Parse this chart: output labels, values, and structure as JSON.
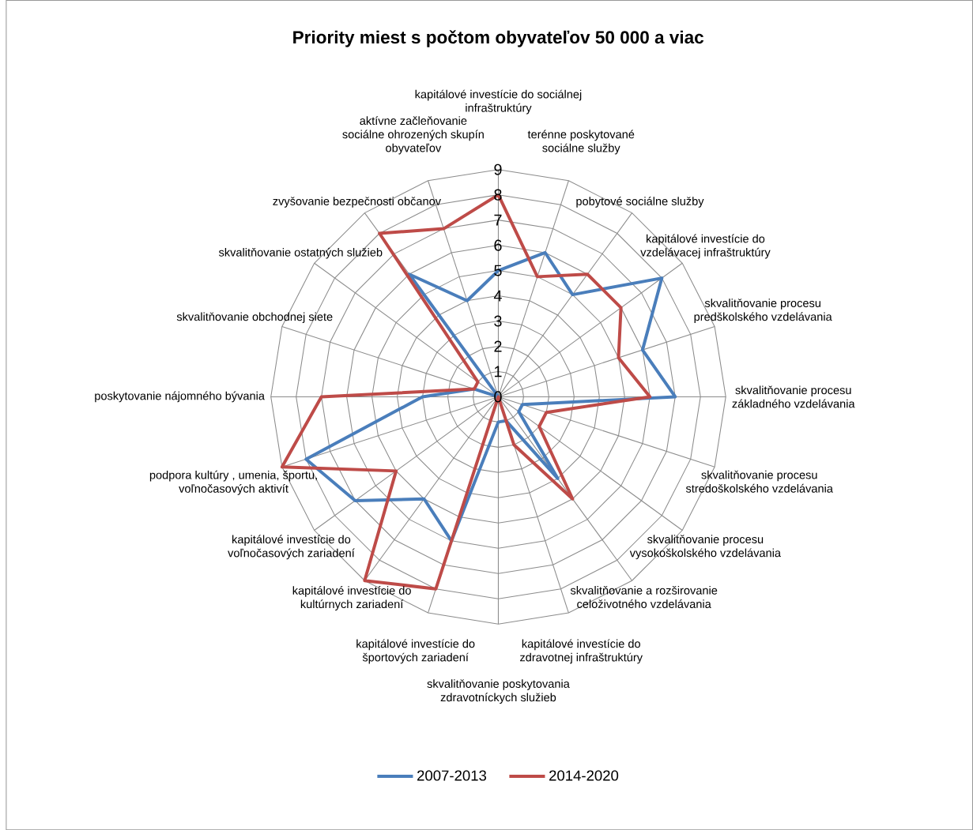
{
  "chart_data": {
    "type": "radar",
    "title": "Priority miest s počtom obyvateľov 50 000 a viac",
    "categories": [
      "kapitálové investície do sociálnej infraštruktúry",
      "terénne poskytované sociálne služby",
      "pobytové sociálne služby",
      "kapitálové investície do vzdelávacej infraštruktúry",
      "skvalitňovanie procesu predškolského vzdelávania",
      "skvalitňovanie procesu základného vzdelávania",
      "skvalitňovanie procesu stredoškolského vzdelávania",
      "skvalitňovanie procesu vysokoškolského vzdelávania",
      "skvalitňovanie a rozširovanie celoživotného vzdelávania",
      "kapitálové investície do zdravotnej infraštruktúry",
      "skvalitňovanie poskytovania zdravotníckych služieb",
      "kapitálové investície do športových zariadení",
      "kapitálové investície do kultúrnych zariadení",
      "kapitálové investície do voľnočasových zariadení",
      "podpora kultúry , umenia, športu, voľnočasových aktivít",
      "poskytovanie nájomného bývania",
      "skvalitňovanie obchodnej siete",
      "skvalitňovanie ostatných služieb",
      "zvyšovanie bezpečnosti občanov",
      "aktívne začleňovanie sociálne ohrozených skupín obyvateľov"
    ],
    "series": [
      {
        "name": "2007-2013",
        "color": "#4a7ebb",
        "values": [
          5,
          6,
          5,
          8,
          6,
          7,
          1,
          1,
          4,
          1,
          1,
          6,
          5,
          7,
          8,
          3,
          1,
          0,
          6,
          4
        ]
      },
      {
        "name": "2014-2020",
        "color": "#be4b48",
        "values": [
          8,
          5,
          6,
          6,
          5,
          6,
          2,
          2,
          5,
          2,
          0,
          8,
          9,
          5,
          9,
          7,
          1,
          1,
          8,
          7
        ]
      }
    ],
    "ylim": [
      0,
      9
    ],
    "yticks": [
      0,
      1,
      2,
      3,
      4,
      5,
      6,
      7,
      8,
      9
    ],
    "grid": true,
    "legend": "bottom"
  }
}
